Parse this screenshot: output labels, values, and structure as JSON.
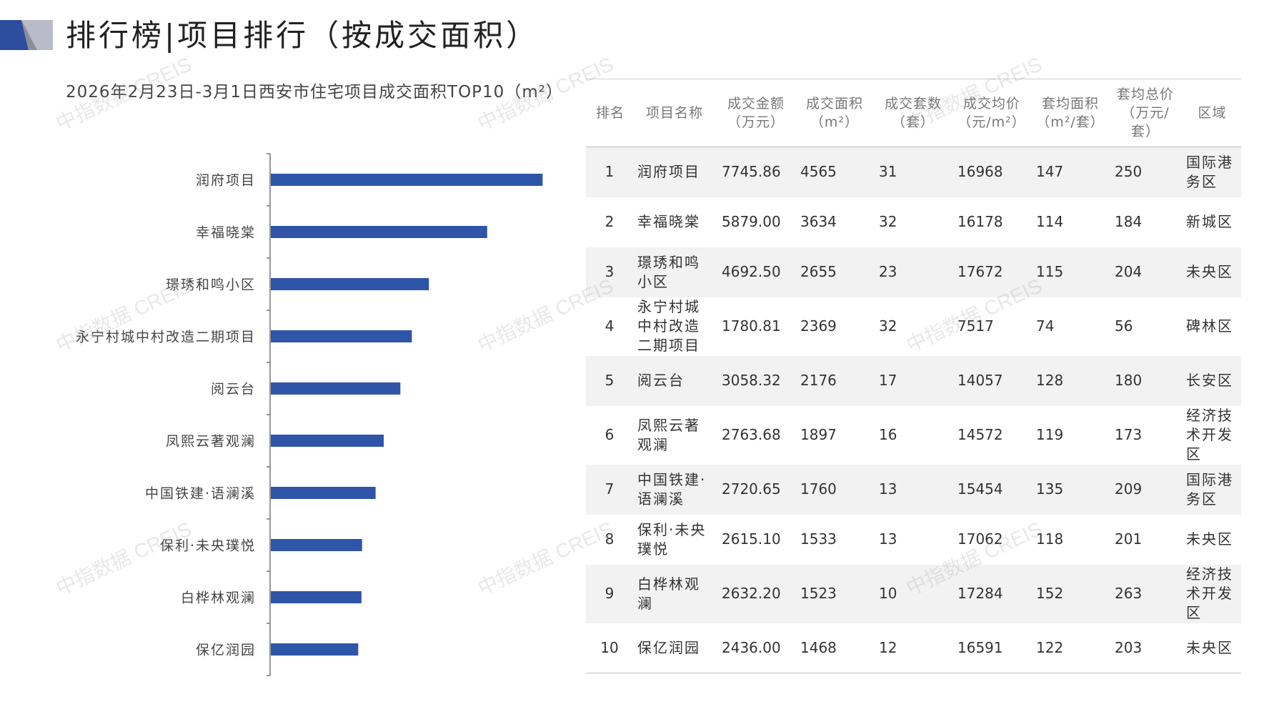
{
  "header": {
    "title": "排行榜|项目排行（按成交面积）"
  },
  "colors": {
    "bar": "#2f55a8",
    "logo_dark": "#2d4d9e",
    "logo_light": "#b9bcc6"
  },
  "chart_data": {
    "type": "bar",
    "orientation": "horizontal",
    "title": "2026年2月23日-3月1日西安市住宅项目成交面积TOP10（m²）",
    "categories": [
      "润府项目",
      "幸福晓棠",
      "璟琇和鸣小区",
      "永宁村城中村改造二期项目",
      "阅云台",
      "凤熙云著观澜",
      "中国铁建·语澜溪",
      "保利·未央璞悦",
      "白桦林观澜",
      "保亿润园"
    ],
    "values": [
      4565,
      3634,
      2655,
      2369,
      2176,
      1897,
      1760,
      1533,
      1523,
      1468
    ],
    "xlabel": "",
    "ylabel": "",
    "xlim": [
      0,
      4800
    ],
    "grid": false,
    "legend": "none"
  },
  "table": {
    "headers": [
      [
        "排名"
      ],
      [
        "项目名称"
      ],
      [
        "成交金额",
        "（万元）"
      ],
      [
        "成交面积",
        "（m²）"
      ],
      [
        "成交套数",
        "（套）"
      ],
      [
        "成交均价",
        "（元/m²）"
      ],
      [
        "套均面积",
        "（m²/套）"
      ],
      [
        "套均总价",
        "（万元/套）"
      ],
      [
        "区域"
      ]
    ],
    "rows": [
      {
        "rank": "1",
        "name": "润府项目",
        "amount": "7745.86",
        "area": "4565",
        "units": "31",
        "price": "16968",
        "avg_area": "147",
        "avg_total": "250",
        "district": "国际港务区"
      },
      {
        "rank": "2",
        "name": "幸福晓棠",
        "amount": "5879.00",
        "area": "3634",
        "units": "32",
        "price": "16178",
        "avg_area": "114",
        "avg_total": "184",
        "district": "新城区"
      },
      {
        "rank": "3",
        "name": "璟琇和鸣小区",
        "amount": "4692.50",
        "area": "2655",
        "units": "23",
        "price": "17672",
        "avg_area": "115",
        "avg_total": "204",
        "district": "未央区"
      },
      {
        "rank": "4",
        "name": "永宁村城中村改造二期项目",
        "amount": "1780.81",
        "area": "2369",
        "units": "32",
        "price": "7517",
        "avg_area": "74",
        "avg_total": "56",
        "district": "碑林区"
      },
      {
        "rank": "5",
        "name": "阅云台",
        "amount": "3058.32",
        "area": "2176",
        "units": "17",
        "price": "14057",
        "avg_area": "128",
        "avg_total": "180",
        "district": "长安区"
      },
      {
        "rank": "6",
        "name": "凤熙云著观澜",
        "amount": "2763.68",
        "area": "1897",
        "units": "16",
        "price": "14572",
        "avg_area": "119",
        "avg_total": "173",
        "district": "经济技术开发区"
      },
      {
        "rank": "7",
        "name": "中国铁建·语澜溪",
        "amount": "2720.65",
        "area": "1760",
        "units": "13",
        "price": "15454",
        "avg_area": "135",
        "avg_total": "209",
        "district": "国际港务区"
      },
      {
        "rank": "8",
        "name": "保利·未央璞悦",
        "amount": "2615.10",
        "area": "1533",
        "units": "13",
        "price": "17062",
        "avg_area": "118",
        "avg_total": "201",
        "district": "未央区"
      },
      {
        "rank": "9",
        "name": "白桦林观澜",
        "amount": "2632.20",
        "area": "1523",
        "units": "10",
        "price": "17284",
        "avg_area": "152",
        "avg_total": "263",
        "district": "经济技术开发区"
      },
      {
        "rank": "10",
        "name": "保亿润园",
        "amount": "2436.00",
        "area": "1468",
        "units": "12",
        "price": "16591",
        "avg_area": "122",
        "avg_total": "203",
        "district": "未央区"
      }
    ]
  },
  "watermark": {
    "text": "中指数据 CREIS"
  }
}
